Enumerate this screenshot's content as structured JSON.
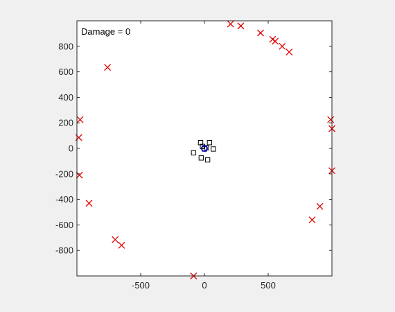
{
  "chart_data": {
    "type": "scatter",
    "title": "",
    "annotation": "Damage = 0",
    "xlabel": "",
    "ylabel": "",
    "xlim": [
      -1000,
      1000
    ],
    "ylim": [
      -1000,
      1000
    ],
    "x_ticks": [
      -500,
      0,
      500
    ],
    "y_ticks": [
      -800,
      -600,
      -400,
      -200,
      0,
      200,
      400,
      600,
      800
    ],
    "grid": false,
    "legend": "none",
    "series": [
      {
        "marker": "x",
        "color": "#e00000",
        "points": [
          [
            205,
            975
          ],
          [
            285,
            960
          ],
          [
            440,
            905
          ],
          [
            535,
            855
          ],
          [
            555,
            840
          ],
          [
            610,
            800
          ],
          [
            665,
            755
          ],
          [
            -760,
            635
          ],
          [
            -975,
            225
          ],
          [
            -985,
            85
          ],
          [
            -980,
            -210
          ],
          [
            -905,
            -430
          ],
          [
            -700,
            -715
          ],
          [
            -650,
            -760
          ],
          [
            -85,
            -1000
          ],
          [
            990,
            225
          ],
          [
            1000,
            155
          ],
          [
            1000,
            -175
          ],
          [
            905,
            -455
          ],
          [
            845,
            -560
          ]
        ]
      },
      {
        "marker": "square",
        "color": "#000000",
        "points": [
          [
            -30,
            45
          ],
          [
            40,
            45
          ],
          [
            -85,
            -35
          ],
          [
            70,
            -5
          ],
          [
            -25,
            -75
          ],
          [
            25,
            -90
          ],
          [
            -15,
            15
          ],
          [
            0,
            -5
          ],
          [
            15,
            5
          ]
        ]
      },
      {
        "marker": "circle",
        "color": "#0000cc",
        "points": [
          [
            0,
            0
          ]
        ]
      }
    ]
  }
}
